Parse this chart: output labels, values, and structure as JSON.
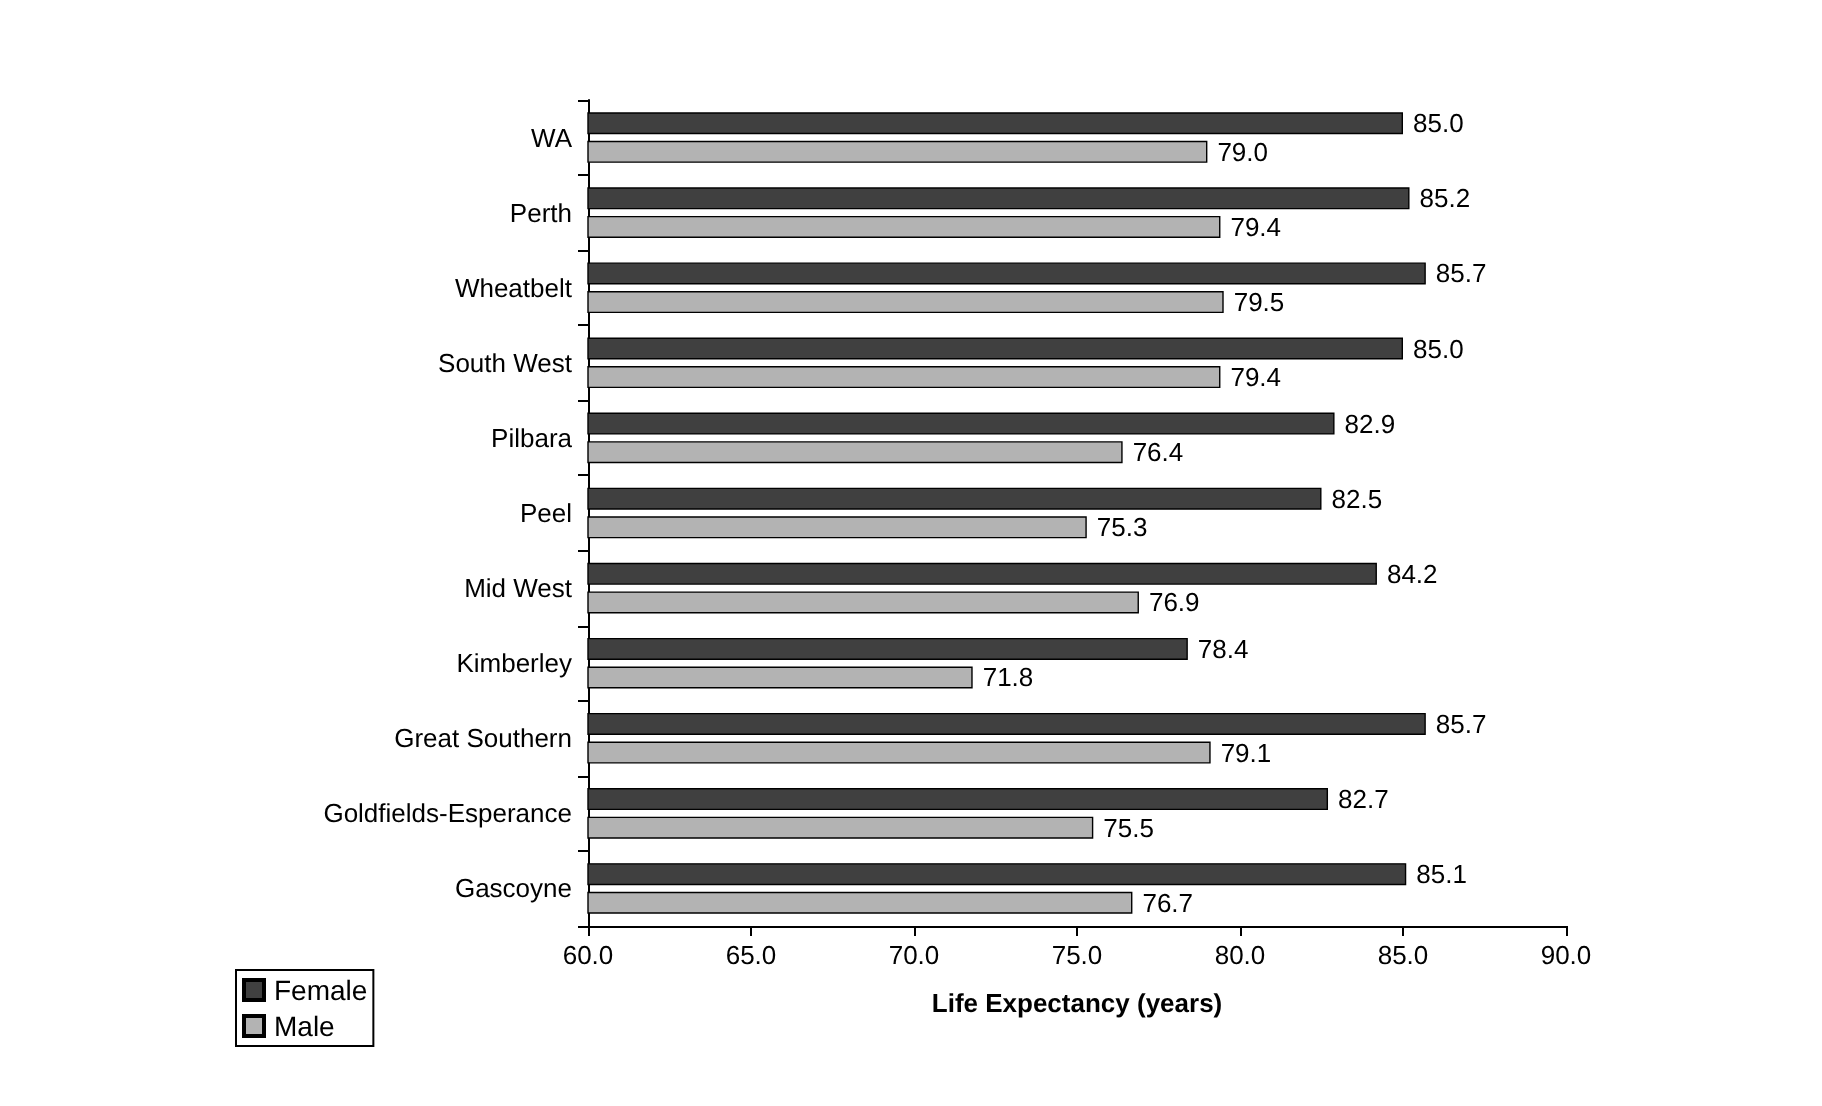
{
  "chart_data": {
    "type": "bar",
    "orientation": "horizontal",
    "xlabel": "Life Expectancy (years)",
    "categories": [
      "WA",
      "Perth",
      "Wheatbelt",
      "South West",
      "Pilbara",
      "Peel",
      "Mid West",
      "Kimberley",
      "Great Southern",
      "Goldfields-Esperance",
      "Gascoyne"
    ],
    "series": [
      {
        "name": "Female",
        "color": "#404040",
        "values": [
          85.0,
          85.2,
          85.7,
          85.0,
          82.9,
          82.5,
          84.2,
          78.4,
          85.7,
          82.7,
          85.1
        ],
        "value_labels": [
          "85.0",
          "85.2",
          "85.7",
          "85.0",
          "82.9",
          "82.5",
          "84.2",
          "78.4",
          "85.7",
          "82.7",
          "85.1"
        ]
      },
      {
        "name": "Male",
        "color": "#b3b3b3",
        "values": [
          79.0,
          79.4,
          79.5,
          79.4,
          76.4,
          75.3,
          76.9,
          71.8,
          79.1,
          75.5,
          76.7
        ],
        "value_labels": [
          "79.0",
          "79.4",
          "79.5",
          "79.4",
          "76.4",
          "75.3",
          "76.9",
          "71.8",
          "79.1",
          "75.5",
          "76.7"
        ]
      }
    ],
    "xlim": [
      60,
      90
    ],
    "xticks": [
      {
        "value": 60,
        "label": "60.0"
      },
      {
        "value": 65,
        "label": "65.0"
      },
      {
        "value": 70,
        "label": "70.0"
      },
      {
        "value": 75,
        "label": "75.0"
      },
      {
        "value": 80,
        "label": "80.0"
      },
      {
        "value": 85,
        "label": "85.0"
      },
      {
        "value": 90,
        "label": "90.0"
      }
    ],
    "grid": false,
    "legend": "bottom left"
  }
}
